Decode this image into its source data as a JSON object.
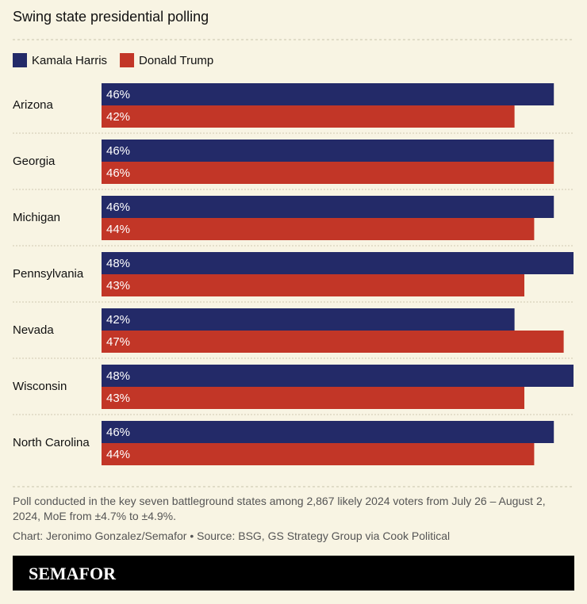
{
  "chart_data": {
    "type": "bar",
    "orientation": "horizontal",
    "title": "Swing state presidential polling",
    "categories": [
      "Arizona",
      "Georgia",
      "Michigan",
      "Pennsylvania",
      "Nevada",
      "Wisconsin",
      "North Carolina"
    ],
    "series": [
      {
        "name": "Kamala Harris",
        "color": "#232a68",
        "values": [
          46,
          46,
          46,
          48,
          42,
          48,
          46
        ],
        "value_labels": [
          "46%",
          "46%",
          "46%",
          "48%",
          "42%",
          "48%",
          "46%"
        ]
      },
      {
        "name": "Donald Trump",
        "color": "#c23627",
        "values": [
          42,
          46,
          44,
          43,
          47,
          43,
          44
        ],
        "value_labels": [
          "42%",
          "46%",
          "44%",
          "43%",
          "47%",
          "43%",
          "44%"
        ]
      }
    ],
    "legend": "top-left",
    "footnote": "Poll conducted in the key seven battleground states among 2,867 likely 2024 voters from July 26 – August 2, 2024, MoE from ±4.7% to ±4.9%.",
    "credit": "Chart: Jeronimo Gonzalez/Semafor • Source: BSG, GS Strategy Group via Cook Political",
    "brand": "SEMAFOR"
  }
}
